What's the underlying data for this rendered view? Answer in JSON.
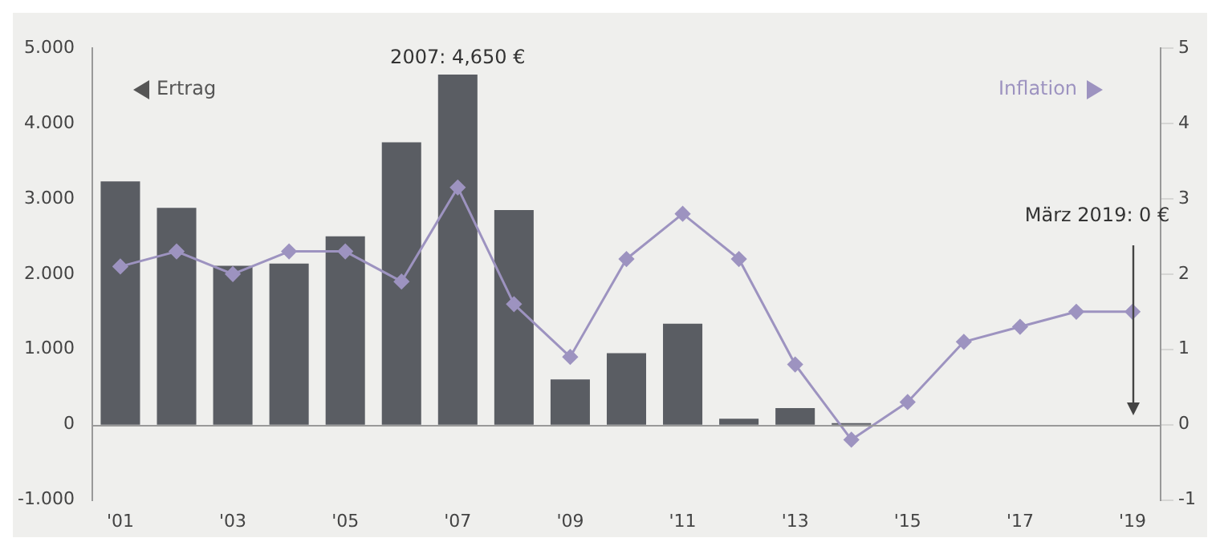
{
  "chart_data": {
    "type": "bar",
    "categories": [
      "'01",
      null,
      "'03",
      null,
      "'05",
      null,
      "'07",
      null,
      "'09",
      null,
      "'11",
      null,
      "'13",
      null,
      "'15",
      null,
      "'17",
      null,
      "'19"
    ],
    "series": [
      {
        "color": "#5a5d63",
        "values": [
          3230,
          2880,
          2110,
          2140,
          2500,
          3750,
          4650,
          2850,
          600,
          950,
          1340,
          80,
          220,
          20,
          0,
          0,
          0,
          0,
          0
        ]
      },
      {
        "type": "line",
        "axis": "y2",
        "color": "#9d93c0",
        "values": [
          2.1,
          2.3,
          2.0,
          2.3,
          2.3,
          1.9,
          3.15,
          1.6,
          0.9,
          2.2,
          2.8,
          2.2,
          0.8,
          -0.2,
          0.3,
          1.1,
          1.3,
          1.5,
          1.5
        ]
      }
    ],
    "ylabel": "Ertrag",
    "y2label": "Inflation",
    "ylim": [
      -1000,
      5000
    ],
    "yticks": [
      {
        "value": -1000,
        "label": "-1.000"
      },
      0,
      {
        "value": 1000,
        "label": "1.000"
      },
      {
        "value": 2000,
        "label": "2.000"
      },
      {
        "value": 3000,
        "label": "3.000"
      },
      {
        "value": 4000,
        "label": "4.000"
      },
      {
        "value": 5000,
        "label": "5.000"
      }
    ],
    "y2lim": [
      -1,
      5
    ],
    "y2ticks": [
      -1,
      0,
      1,
      2,
      3,
      4,
      5
    ],
    "annotations": [
      {
        "text": "2007: 4,650 €",
        "x": "'07",
        "y": 4650
      },
      "März 2019: 0 €"
    ],
    "marker": "diamond",
    "grid": false,
    "legend": false
  }
}
